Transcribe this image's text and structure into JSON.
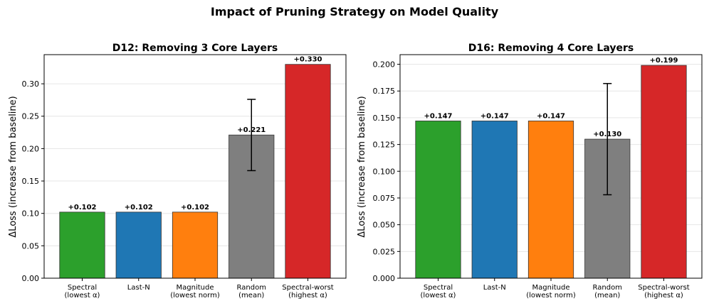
{
  "figure": {
    "title": "Impact of Pruning Strategy on Model Quality"
  },
  "chart_data": [
    {
      "type": "bar",
      "title": "D12: Removing 3 Core Layers",
      "xlabel": "",
      "ylabel": "ΔLoss (increase from baseline)",
      "ylim": [
        0,
        0.345
      ],
      "yticks": [
        0.0,
        0.05,
        0.1,
        0.15,
        0.2,
        0.25,
        0.3
      ],
      "tick_decimals": 2,
      "grid": "horizontal",
      "categories": [
        [
          "Spectral",
          "(lowest α)"
        ],
        [
          "Last-N"
        ],
        [
          "Magnitude",
          "(lowest norm)"
        ],
        [
          "Random",
          "(mean)"
        ],
        [
          "Spectral-worst",
          "(highest α)"
        ]
      ],
      "values": [
        0.102,
        0.102,
        0.102,
        0.221,
        0.33
      ],
      "labels": [
        "+0.102",
        "+0.102",
        "+0.102",
        "+0.221",
        "+0.330"
      ],
      "errors": [
        null,
        null,
        null,
        0.055,
        null
      ],
      "colors": [
        "#2ca02c",
        "#1f77b4",
        "#ff7f0e",
        "#7f7f7f",
        "#d62728"
      ]
    },
    {
      "type": "bar",
      "title": "D16: Removing 4 Core Layers",
      "xlabel": "",
      "ylabel": "ΔLoss (increase from baseline)",
      "ylim": [
        0,
        0.209
      ],
      "yticks": [
        0.0,
        0.025,
        0.05,
        0.075,
        0.1,
        0.125,
        0.15,
        0.175,
        0.2
      ],
      "tick_decimals": 3,
      "grid": "horizontal",
      "categories": [
        [
          "Spectral",
          "(lowest α)"
        ],
        [
          "Last-N"
        ],
        [
          "Magnitude",
          "(lowest norm)"
        ],
        [
          "Random",
          "(mean)"
        ],
        [
          "Spectral-worst",
          "(highest α)"
        ]
      ],
      "values": [
        0.147,
        0.147,
        0.147,
        0.13,
        0.199
      ],
      "labels": [
        "+0.147",
        "+0.147",
        "+0.147",
        "+0.130",
        "+0.199"
      ],
      "errors": [
        null,
        null,
        null,
        0.052,
        null
      ],
      "colors": [
        "#2ca02c",
        "#1f77b4",
        "#ff7f0e",
        "#7f7f7f",
        "#d62728"
      ]
    }
  ]
}
